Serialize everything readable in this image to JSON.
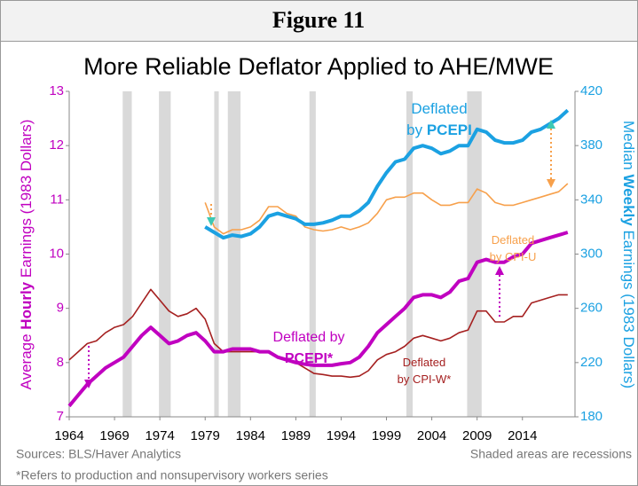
{
  "header": "Figure 11",
  "chart_data": {
    "type": "line",
    "title": "More Reliable Deflator Applied to AHE/MWE",
    "y_label": [
      {
        "text": "Average "
      },
      {
        "text": "Hourly",
        "bold": true
      },
      {
        "text": " Earnings (1983 Dollars)"
      }
    ],
    "y2_label": [
      {
        "text": "Median "
      },
      {
        "text": "Weekly",
        "bold": true
      },
      {
        "text": " Earnings (1983 Dollars)"
      }
    ],
    "x": [
      1964,
      1965,
      1966,
      1967,
      1968,
      1969,
      1970,
      1971,
      1972,
      1973,
      1974,
      1975,
      1976,
      1977,
      1978,
      1979,
      1980,
      1981,
      1982,
      1983,
      1984,
      1985,
      1986,
      1987,
      1988,
      1989,
      1990,
      1991,
      1992,
      1993,
      1994,
      1995,
      1996,
      1997,
      1998,
      1999,
      2000,
      2001,
      2002,
      2003,
      2004,
      2005,
      2006,
      2007,
      2008,
      2009,
      2010,
      2011,
      2012,
      2013,
      2014,
      2015,
      2016,
      2017,
      2018,
      2019
    ],
    "xlim": [
      1964,
      2019.8
    ],
    "xticks": [
      1964,
      1969,
      1974,
      1979,
      1984,
      1989,
      1994,
      1999,
      2004,
      2009,
      2014
    ],
    "ylim": [
      7,
      13
    ],
    "yticks": [
      7,
      8,
      9,
      10,
      11,
      12,
      13
    ],
    "y_color": "#c000c0",
    "y2lim": [
      180,
      420
    ],
    "y2ticks": [
      180,
      220,
      260,
      300,
      340,
      380,
      420
    ],
    "y2_color": "#1ba1e2",
    "recession_color": "#d9d9d9",
    "recessions": [
      [
        1969.9,
        1970.9
      ],
      [
        1973.9,
        1975.2
      ],
      [
        1980.0,
        1980.5
      ],
      [
        1981.5,
        1982.9
      ],
      [
        1990.5,
        1991.2
      ],
      [
        2001.2,
        2001.9
      ],
      [
        2007.9,
        2009.5
      ]
    ],
    "series": [
      {
        "name": "AHE deflated by CPI-W*",
        "color": "#a52020",
        "width": 1.6,
        "values": [
          8.05,
          8.2,
          8.35,
          8.4,
          8.55,
          8.65,
          8.7,
          8.85,
          9.1,
          9.35,
          9.15,
          8.95,
          8.85,
          8.9,
          9.0,
          8.8,
          8.35,
          8.2,
          8.2,
          8.2,
          8.2,
          8.2,
          8.2,
          8.1,
          8.05,
          8.0,
          7.9,
          7.8,
          7.78,
          7.75,
          7.75,
          7.73,
          7.75,
          7.85,
          8.05,
          8.15,
          8.2,
          8.3,
          8.45,
          8.5,
          8.45,
          8.4,
          8.45,
          8.55,
          8.6,
          8.95,
          8.95,
          8.75,
          8.75,
          8.85,
          8.85,
          9.1,
          9.15,
          9.2,
          9.25,
          9.25
        ]
      },
      {
        "name": "AHE deflated by PCEPI",
        "color": "#c000c0",
        "width": 4,
        "values": [
          7.2,
          7.4,
          7.6,
          7.75,
          7.9,
          8.0,
          8.1,
          8.3,
          8.5,
          8.65,
          8.5,
          8.35,
          8.4,
          8.5,
          8.55,
          8.4,
          8.2,
          8.2,
          8.25,
          8.25,
          8.25,
          8.2,
          8.2,
          8.1,
          8.05,
          8.0,
          7.97,
          7.95,
          7.95,
          7.95,
          7.98,
          8.0,
          8.1,
          8.3,
          8.55,
          8.7,
          8.85,
          9.0,
          9.2,
          9.25,
          9.25,
          9.2,
          9.3,
          9.5,
          9.55,
          9.85,
          9.9,
          9.85,
          9.85,
          9.95,
          10.0,
          10.2,
          10.25,
          10.3,
          10.35,
          10.4
        ]
      },
      {
        "name": "MWE deflated by CPI-U",
        "color": "#f7a04b",
        "width": 1.6,
        "axis": "y2",
        "values": [
          null,
          null,
          null,
          null,
          null,
          null,
          null,
          null,
          null,
          null,
          null,
          null,
          null,
          null,
          null,
          338,
          320,
          315,
          318,
          318,
          320,
          325,
          335,
          335,
          330,
          328,
          320,
          318,
          317,
          318,
          320,
          318,
          320,
          323,
          330,
          340,
          342,
          342,
          345,
          345,
          340,
          336,
          336,
          338,
          338,
          348,
          345,
          338,
          336,
          336,
          338,
          340,
          342,
          344,
          346,
          352
        ]
      },
      {
        "name": "MWE deflated by PCEPI",
        "color": "#1ba1e2",
        "width": 4,
        "axis": "y2",
        "values": [
          null,
          null,
          null,
          null,
          null,
          null,
          null,
          null,
          null,
          null,
          null,
          null,
          null,
          null,
          null,
          320,
          316,
          312,
          314,
          313,
          315,
          320,
          328,
          330,
          328,
          326,
          322,
          322,
          323,
          325,
          328,
          328,
          332,
          338,
          350,
          360,
          368,
          370,
          378,
          380,
          378,
          374,
          376,
          380,
          380,
          392,
          390,
          384,
          382,
          382,
          384,
          390,
          392,
          396,
          400,
          406
        ]
      }
    ],
    "annotations": [
      {
        "color": "#1ba1e2",
        "size": 17,
        "lines": [
          [
            {
              "text": "Deflated"
            }
          ],
          [
            {
              "text": "by "
            },
            {
              "text": "PCEPI",
              "bold": true
            }
          ]
        ]
      },
      {
        "color": "#f7a04b",
        "size": 13,
        "lines": [
          [
            {
              "text": "Deflated"
            }
          ],
          [
            {
              "text": "by CPI-U"
            }
          ]
        ]
      },
      {
        "color": "#c000c0",
        "size": 16,
        "lines": [
          [
            {
              "text": "Deflated by"
            }
          ],
          [
            {
              "text": "PCEPI*",
              "bold": true
            }
          ]
        ]
      },
      {
        "color": "#a52020",
        "size": 13,
        "lines": [
          [
            {
              "text": "Deflated"
            }
          ],
          [
            {
              "text": "by CPI-W*"
            }
          ]
        ]
      }
    ],
    "source": "Sources: BLS/Haver Analytics",
    "note": "Shaded areas are recessions",
    "footnote": "*Refers to production and nonsupervisory workers series"
  }
}
